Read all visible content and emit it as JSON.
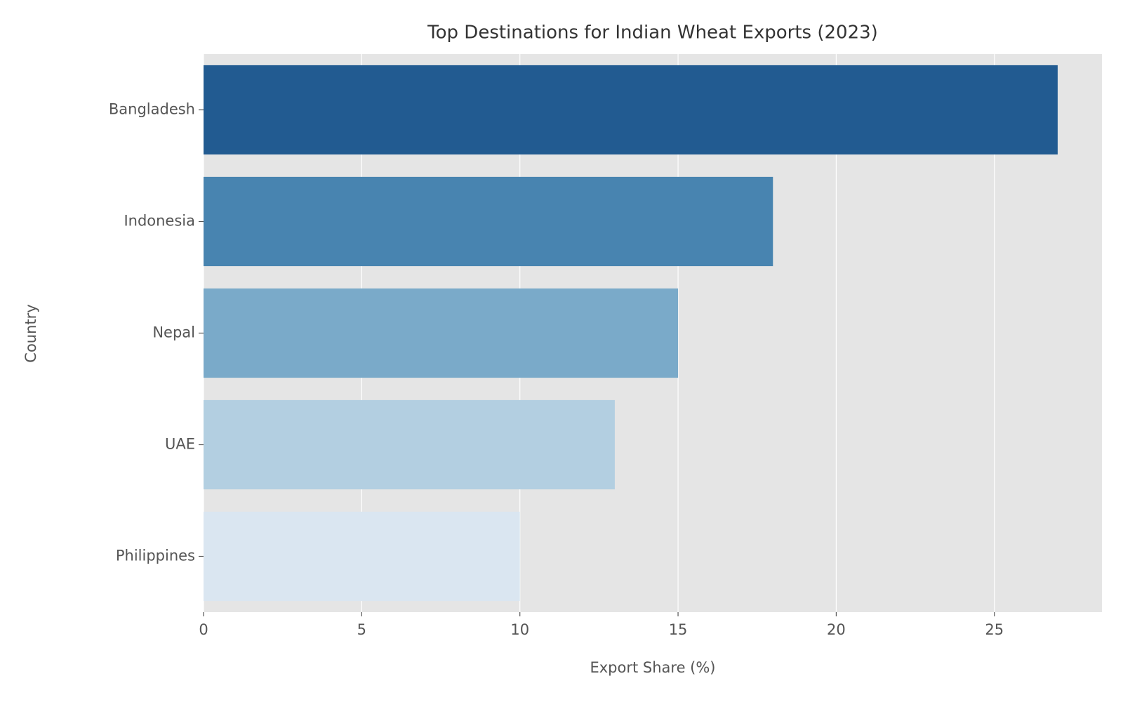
{
  "chart_data": {
    "type": "barh",
    "title": "Top Destinations for Indian Wheat Exports (2023)",
    "x_label": "Export Share (%)",
    "y_label": "Country",
    "categories": [
      "Bangladesh",
      "Indonesia",
      "Nepal",
      "UAE",
      "Philippines"
    ],
    "values": [
      27,
      18,
      15,
      13,
      10
    ],
    "colors": [
      "#225b91",
      "#4884b0",
      "#7aaac9",
      "#b3cfe1",
      "#dae6f1"
    ],
    "xlim": [
      0,
      28.4
    ],
    "xticks": [
      0,
      5,
      10,
      15,
      20,
      25
    ],
    "grid": true
  }
}
